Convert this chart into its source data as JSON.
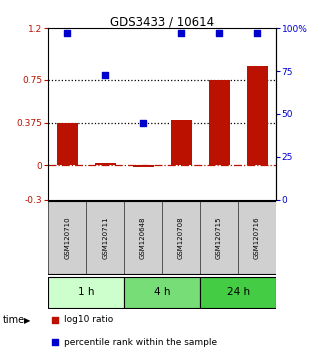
{
  "title": "GDS3433 / 10614",
  "samples": [
    "GSM120710",
    "GSM120711",
    "GSM120648",
    "GSM120708",
    "GSM120715",
    "GSM120716"
  ],
  "log10_ratio": [
    0.375,
    0.018,
    -0.018,
    0.4,
    0.75,
    0.87
  ],
  "percentile_rank": [
    97,
    73,
    45,
    97,
    97,
    97
  ],
  "bar_color": "#bb1100",
  "dot_color": "#0000cc",
  "ylim_left": [
    -0.3,
    1.2
  ],
  "ylim_right": [
    0,
    100
  ],
  "yticks_left": [
    -0.3,
    0,
    0.375,
    0.75,
    1.2
  ],
  "yticks_right": [
    0,
    25,
    50,
    75,
    100
  ],
  "yticklabels_left": [
    "-0.3",
    "0",
    "0.375",
    "0.75",
    "1.2"
  ],
  "yticklabels_right": [
    "0",
    "25",
    "50",
    "75",
    "100%"
  ],
  "hlines_dotted": [
    0.75,
    0.375
  ],
  "hline_dashdot": 0,
  "time_groups": [
    {
      "label": "1 h",
      "span": [
        0,
        2
      ],
      "color": "#ccffcc"
    },
    {
      "label": "4 h",
      "span": [
        2,
        4
      ],
      "color": "#77dd77"
    },
    {
      "label": "24 h",
      "span": [
        4,
        6
      ],
      "color": "#44cc44"
    }
  ],
  "legend_bar_label": "log10 ratio",
  "legend_dot_label": "percentile rank within the sample",
  "xlabel_time": "time",
  "bar_width": 0.55,
  "sample_box_color": "#d0d0d0",
  "sample_box_edge": "#555555"
}
